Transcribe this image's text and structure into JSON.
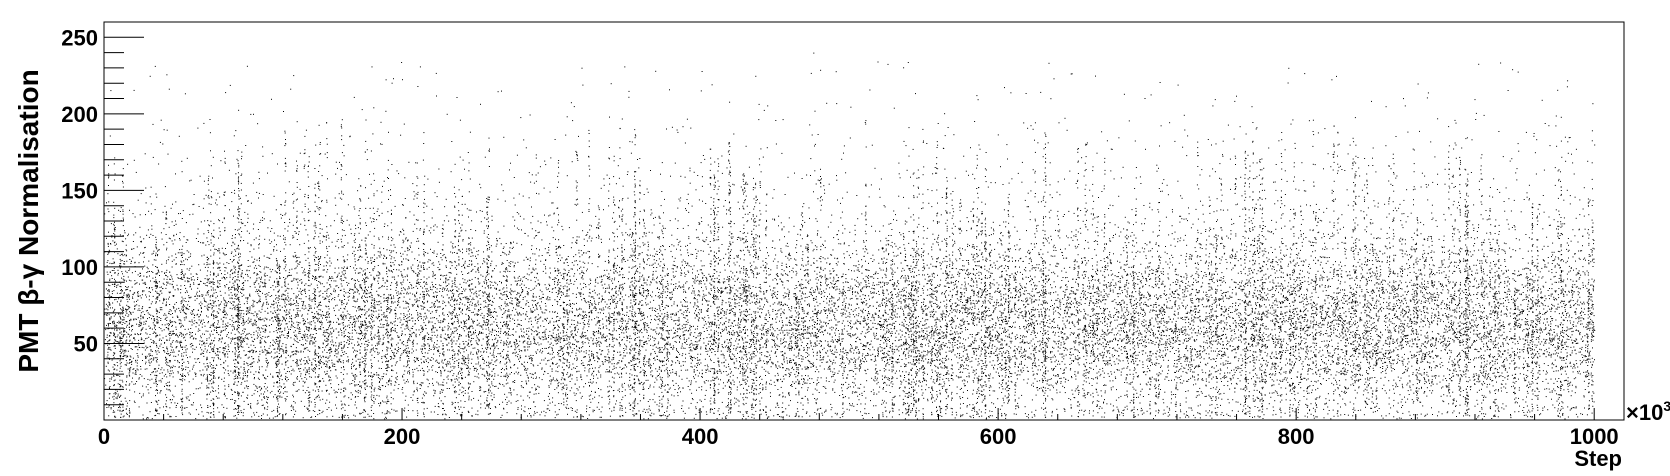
{
  "chart_data": {
    "type": "scatter",
    "title": "",
    "xlabel": "Step",
    "ylabel": "PMT  β-γ Normalisation",
    "x_multiplier_label": "×10",
    "x_multiplier_exponent": "3",
    "xlim": [
      0,
      1020
    ],
    "ylim": [
      0,
      260
    ],
    "xticks": [
      0,
      200,
      400,
      600,
      800,
      1000
    ],
    "xtick_labels": [
      "0",
      "200",
      "400",
      "600",
      "800",
      "1000"
    ],
    "yticks": [
      50,
      100,
      150,
      200,
      250
    ],
    "ytick_labels": [
      "50",
      "100",
      "150",
      "200",
      "250"
    ],
    "grid": false,
    "legend": "none",
    "marker_color": "#000000",
    "series": [
      {
        "x_range": [
          0,
          1000
        ],
        "y_typical_range": [
          20,
          110
        ],
        "y_median": 60,
        "y_max_observed": 240,
        "points_sample": [
          [
            5,
            60
          ],
          [
            12,
            160
          ],
          [
            20,
            170
          ],
          [
            40,
            190
          ],
          [
            100,
            200
          ],
          [
            230,
            200
          ],
          [
            340,
            220
          ],
          [
            352,
            215
          ],
          [
            476,
            240
          ],
          [
            665,
            225
          ],
          [
            770,
            205
          ],
          [
            860,
            205
          ],
          [
            1000,
            180
          ]
        ]
      }
    ]
  }
}
